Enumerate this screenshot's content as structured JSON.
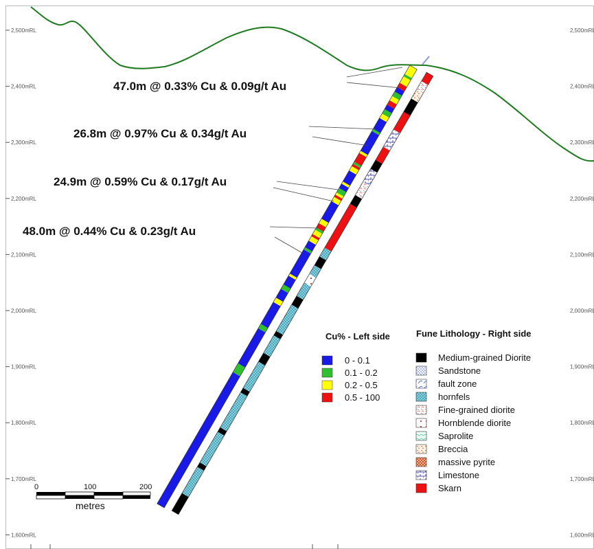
{
  "rl_levels": [
    "2,500mRL",
    "2,400mRL",
    "2,300mRL",
    "2,200mRL",
    "2,100mRL",
    "2,000mRL",
    "1,900mRL",
    "1,800mRL",
    "1,700mRL",
    "1,600mRL"
  ],
  "intercepts": [
    {
      "text": "47.0m @ 0.33% Cu & 0.09g/t Au"
    },
    {
      "text": "26.8m @ 0.97% Cu & 0.34g/t Au"
    },
    {
      "text": "24.9m @ 0.59% Cu & 0.17g/t Au"
    },
    {
      "text": "48.0m @ 0.44% Cu & 0.23g/t Au"
    }
  ],
  "cu_legend": {
    "title": "Cu% - Left side",
    "items": [
      {
        "label": "0 - 0.1",
        "color": "#1a1ae6"
      },
      {
        "label": "0.1 - 0.2",
        "color": "#2fbf2f"
      },
      {
        "label": "0.2 - 0.5",
        "color": "#ffff00"
      },
      {
        "label": "0.5 - 100",
        "color": "#ee1111"
      }
    ]
  },
  "lith_legend": {
    "title": "Fune Lithology - Right side",
    "items": [
      {
        "label": "Medium-grained Diorite",
        "pattern": "solid-black"
      },
      {
        "label": "Sandstone",
        "pattern": "dots-blue"
      },
      {
        "label": "fault zone",
        "pattern": "fault"
      },
      {
        "label": "hornfels",
        "pattern": "cross-cyan"
      },
      {
        "label": "Fine-grained diorite",
        "pattern": "fine-diorite"
      },
      {
        "label": "Hornblende diorite",
        "pattern": "hornblende"
      },
      {
        "label": "Saprolite",
        "pattern": "saprolite"
      },
      {
        "label": "Breccia",
        "pattern": "breccia"
      },
      {
        "label": "massive pyrite",
        "pattern": "pyrite"
      },
      {
        "label": "Limestone",
        "pattern": "limestone"
      },
      {
        "label": "Skarn",
        "pattern": "solid-red"
      }
    ]
  },
  "scale_bar": {
    "ticks": [
      "0",
      "100",
      "200"
    ],
    "unit": "metres"
  },
  "colors": {
    "topography": "#1e7a1e",
    "cu_low": "#1a1ae6",
    "cu_mid": "#2fbf2f",
    "cu_high": "#ffff00",
    "cu_top": "#ee1111",
    "skarn": "#ee1111",
    "diorite": "#000000",
    "hornfels": "#8fd8e6"
  },
  "drillhole": {
    "cu_intervals": [
      [
        0.0,
        0.3,
        "blue"
      ],
      [
        0.3,
        0.32,
        "green"
      ],
      [
        0.32,
        0.4,
        "blue"
      ],
      [
        0.4,
        0.41,
        "green"
      ],
      [
        0.41,
        0.46,
        "blue"
      ],
      [
        0.46,
        0.47,
        "yellow"
      ],
      [
        0.47,
        0.49,
        "blue"
      ],
      [
        0.49,
        0.5,
        "green"
      ],
      [
        0.5,
        0.52,
        "blue"
      ],
      [
        0.52,
        0.525,
        "yellow"
      ],
      [
        0.525,
        0.58,
        "blue"
      ],
      [
        0.58,
        0.585,
        "green"
      ],
      [
        0.585,
        0.6,
        "blue"
      ],
      [
        0.6,
        0.61,
        "yellow"
      ],
      [
        0.61,
        0.615,
        "red"
      ],
      [
        0.615,
        0.625,
        "yellow"
      ],
      [
        0.625,
        0.63,
        "green"
      ],
      [
        0.63,
        0.64,
        "red"
      ],
      [
        0.64,
        0.65,
        "yellow"
      ],
      [
        0.65,
        0.69,
        "blue"
      ],
      [
        0.69,
        0.7,
        "yellow"
      ],
      [
        0.7,
        0.705,
        "red"
      ],
      [
        0.705,
        0.71,
        "yellow"
      ],
      [
        0.71,
        0.72,
        "green"
      ],
      [
        0.72,
        0.73,
        "blue"
      ],
      [
        0.73,
        0.735,
        "yellow"
      ],
      [
        0.735,
        0.76,
        "blue"
      ],
      [
        0.76,
        0.77,
        "yellow"
      ],
      [
        0.77,
        0.775,
        "red"
      ],
      [
        0.775,
        0.78,
        "green"
      ],
      [
        0.78,
        0.8,
        "red"
      ],
      [
        0.8,
        0.805,
        "yellow"
      ],
      [
        0.805,
        0.85,
        "blue"
      ],
      [
        0.85,
        0.855,
        "green"
      ],
      [
        0.855,
        0.88,
        "blue"
      ],
      [
        0.88,
        0.89,
        "yellow"
      ],
      [
        0.89,
        0.9,
        "green"
      ],
      [
        0.9,
        0.91,
        "blue"
      ],
      [
        0.91,
        0.92,
        "red"
      ],
      [
        0.92,
        0.93,
        "yellow"
      ],
      [
        0.93,
        0.94,
        "green"
      ],
      [
        0.94,
        0.95,
        "blue"
      ],
      [
        0.95,
        0.96,
        "red"
      ],
      [
        0.96,
        0.975,
        "yellow"
      ],
      [
        0.975,
        0.98,
        "green"
      ],
      [
        0.98,
        1.0,
        "yellow"
      ]
    ],
    "lith_intervals": [
      [
        0.0,
        0.04,
        "solid-black"
      ],
      [
        0.04,
        0.1,
        "cross-cyan"
      ],
      [
        0.1,
        0.11,
        "solid-black"
      ],
      [
        0.11,
        0.18,
        "cross-cyan"
      ],
      [
        0.18,
        0.19,
        "solid-black"
      ],
      [
        0.19,
        0.27,
        "cross-cyan"
      ],
      [
        0.27,
        0.28,
        "solid-black"
      ],
      [
        0.28,
        0.34,
        "cross-cyan"
      ],
      [
        0.34,
        0.36,
        "solid-black"
      ],
      [
        0.36,
        0.4,
        "cross-cyan"
      ],
      [
        0.4,
        0.41,
        "solid-black"
      ],
      [
        0.41,
        0.47,
        "cross-cyan"
      ],
      [
        0.47,
        0.49,
        "solid-black"
      ],
      [
        0.49,
        0.52,
        "cross-cyan"
      ],
      [
        0.52,
        0.54,
        "hornblende"
      ],
      [
        0.54,
        0.56,
        "cross-cyan"
      ],
      [
        0.56,
        0.58,
        "solid-black"
      ],
      [
        0.58,
        0.6,
        "cross-cyan"
      ],
      [
        0.6,
        0.7,
        "solid-red"
      ],
      [
        0.7,
        0.72,
        "solid-black"
      ],
      [
        0.72,
        0.75,
        "fine-diorite"
      ],
      [
        0.75,
        0.78,
        "limestone"
      ],
      [
        0.78,
        0.8,
        "solid-black"
      ],
      [
        0.8,
        0.83,
        "solid-red"
      ],
      [
        0.83,
        0.87,
        "limestone"
      ],
      [
        0.87,
        0.91,
        "solid-red"
      ],
      [
        0.91,
        0.94,
        "solid-black"
      ],
      [
        0.94,
        0.96,
        "breccia"
      ],
      [
        0.96,
        0.98,
        "fine-diorite"
      ],
      [
        0.98,
        1.0,
        "solid-red"
      ]
    ]
  }
}
